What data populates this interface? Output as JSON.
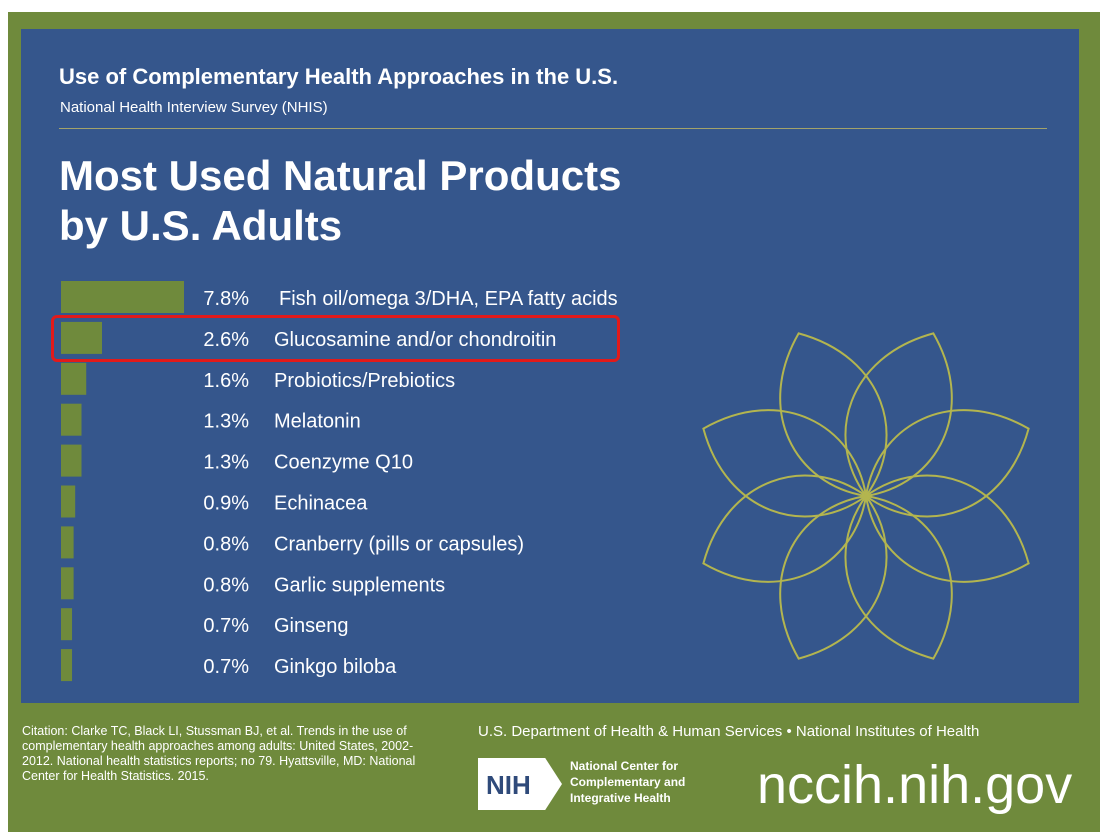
{
  "header": {
    "supertitle": "Use of Complementary Health Approaches in the U.S.",
    "subtitle": "National Health Interview Survey (NHIS)",
    "title_line1": "Most Used Natural Products",
    "title_line2": "by U.S. Adults"
  },
  "chart_data": {
    "type": "bar",
    "orientation": "horizontal",
    "title": "Most Used Natural Products by U.S. Adults",
    "unit": "%",
    "categories": [
      "Fish oil/omega 3/DHA, EPA fatty acids",
      "Glucosamine and/or chondroitin",
      "Probiotics/Prebiotics",
      "Melatonin",
      "Coenzyme Q10",
      "Echinacea",
      "Cranberry (pills or capsules)",
      "Garlic supplements",
      "Ginseng",
      "Ginkgo biloba"
    ],
    "values": [
      7.8,
      2.6,
      1.6,
      1.3,
      1.3,
      0.9,
      0.8,
      0.8,
      0.7,
      0.7
    ],
    "value_labels": [
      "7.8%",
      "2.6%",
      "1.6%",
      "1.3%",
      "1.3%",
      "0.9%",
      "0.8%",
      "0.8%",
      "0.7%",
      "0.7%"
    ],
    "highlighted_index": 1,
    "bar_color": "#6f8a3c",
    "highlight_color": "#e21a1a"
  },
  "footer": {
    "citation": "Citation: Clarke TC, Black LI, Stussman BJ, et al. Trends in the use of complementary health approaches among adults: United States, 2002-2012. National health statistics reports; no 79. Hyattsville, MD: National Center for Health Statistics. 2015.",
    "agencies": "U.S. Department of Health & Human Services • National Institutes of Health",
    "logo_text": "NIH",
    "center_name": "National Center for Complementary and Integrative Health",
    "website": "nccih.nih.gov"
  },
  "colors": {
    "frame": "#6f8a3c",
    "panel": "#35568c",
    "flower_stroke": "#b3b54f"
  }
}
